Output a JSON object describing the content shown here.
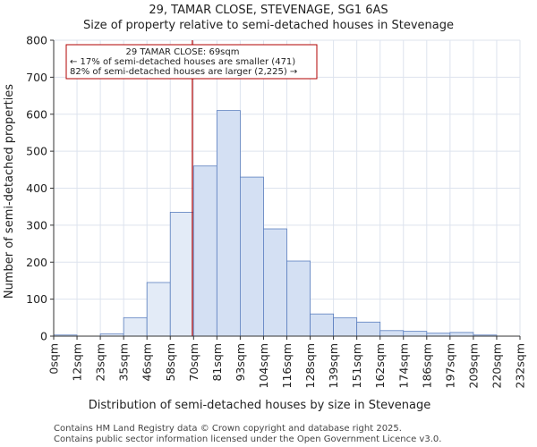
{
  "chart_data": {
    "type": "bar",
    "title_line1": "29, TAMAR CLOSE, STEVENAGE, SG1 6AS",
    "title_line2": "Size of property relative to semi-detached houses in Stevenage",
    "xlabel": "Distribution of semi-detached houses by size in Stevenage",
    "ylabel": "Number of semi-detached properties",
    "ylim": [
      0,
      800
    ],
    "yticks": [
      0,
      100,
      200,
      300,
      400,
      500,
      600,
      700,
      800
    ],
    "x_tick_labels": [
      "0sqm",
      "12sqm",
      "23sqm",
      "35sqm",
      "46sqm",
      "58sqm",
      "70sqm",
      "81sqm",
      "93sqm",
      "104sqm",
      "116sqm",
      "128sqm",
      "139sqm",
      "151sqm",
      "162sqm",
      "174sqm",
      "186sqm",
      "197sqm",
      "209sqm",
      "220sqm",
      "232sqm"
    ],
    "bin_edges": [
      0,
      11.6,
      23.2,
      34.8,
      46.4,
      58,
      69.6,
      81.2,
      92.8,
      104.4,
      116,
      127.6,
      139.2,
      150.8,
      162.4,
      174,
      185.6,
      197.2,
      208.8,
      220.4,
      232
    ],
    "values": [
      3,
      0,
      6,
      50,
      145,
      335,
      460,
      610,
      430,
      290,
      203,
      60,
      50,
      38,
      15,
      13,
      8,
      10,
      3,
      0
    ],
    "highlight_below_value": 69,
    "marker_value": 69,
    "annotation": {
      "line1": "29 TAMAR CLOSE: 69sqm",
      "line2": "← 17% of semi-detached houses are smaller (471)",
      "line3": "82% of semi-detached houses are larger (2,225) →"
    },
    "grid": true,
    "colors": {
      "bar_fill_left": "#e3ebf7",
      "bar_fill_right": "#d4e0f3",
      "bar_edge": "#5b7fbf",
      "marker": "#b00000",
      "grid": "#dde3ee",
      "axes": "#333333"
    }
  },
  "footer": {
    "line1": "Contains HM Land Registry data © Crown copyright and database right 2025.",
    "line2": "Contains public sector information licensed under the Open Government Licence v3.0."
  }
}
